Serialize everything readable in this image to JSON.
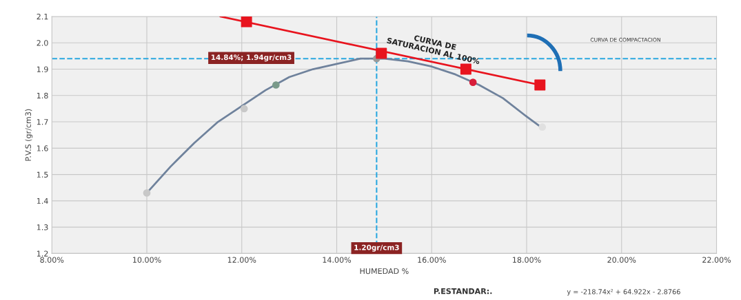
{
  "chart_data": {
    "type": "line",
    "xlabel": "HUMEDAD %",
    "ylabel": "P.V.S (gr/cm3)",
    "xlim": [
      0.08,
      0.22
    ],
    "xticks": [
      {
        "value": 0.08,
        "label": "8.00%"
      },
      {
        "value": 0.1,
        "label": "10.00%"
      },
      {
        "value": 0.12,
        "label": "12.00%"
      },
      {
        "value": 0.14,
        "label": "14.00%"
      },
      {
        "value": 0.16,
        "label": "16.00%"
      },
      {
        "value": 0.18,
        "label": "18.00%"
      },
      {
        "value": 0.2,
        "label": "20.00%"
      },
      {
        "value": 0.22,
        "label": "22.00%"
      }
    ],
    "ylim": [
      1.2,
      2.1
    ],
    "yticks": [
      1.2,
      1.3,
      1.4,
      1.5,
      1.6,
      1.7,
      1.8,
      1.9,
      {
        "value": 2.0,
        "label": "2.0"
      },
      2.1
    ],
    "grid": true,
    "series": [
      {
        "color": "#6f829c",
        "marker": "none",
        "x": [
          0.1,
          0.105,
          0.11,
          0.115,
          0.12,
          0.125,
          0.13,
          0.135,
          0.14,
          0.145,
          0.15,
          0.155,
          0.16,
          0.165,
          0.17,
          0.175,
          0.18,
          0.183
        ],
        "values": [
          1.43,
          1.53,
          1.62,
          1.7,
          1.76,
          1.82,
          1.87,
          1.9,
          1.92,
          1.94,
          1.94,
          1.93,
          1.91,
          1.88,
          1.84,
          1.79,
          1.72,
          1.68
        ]
      },
      {
        "type": "scatter",
        "marker": "circle",
        "x": [
          0.1,
          0.1205,
          0.1272,
          0.1484,
          0.1687,
          0.1833
        ],
        "values": [
          1.43,
          1.75,
          1.84,
          1.94,
          1.85,
          1.68
        ],
        "colors": [
          "#c8c8c8",
          "#c8c8c8",
          "#7a9a8a",
          "#9a9a9a",
          "#d81e3a",
          "#e0e0e0"
        ]
      },
      {
        "type": "line",
        "color": "#e8141e",
        "marker": "none",
        "x": [
          0.1155,
          0.1828
        ],
        "values": [
          2.1,
          1.84
        ]
      },
      {
        "type": "scatter",
        "color": "#e8141e",
        "marker": "square",
        "x": [
          0.121,
          0.1494,
          0.1672,
          0.1828
        ],
        "values": [
          2.08,
          1.96,
          1.9,
          1.84
        ]
      }
    ],
    "ref_lines": [
      {
        "axis": "y",
        "value": 1.94,
        "color": "#2aa8e0",
        "line_style": "dashed"
      },
      {
        "axis": "x",
        "value": 0.1484,
        "color": "#2aa8e0",
        "line_style": "dashed"
      }
    ],
    "annotations": [
      "14.84%; 1.94gr/cm3",
      {
        "text": "1.20gr/cm3",
        "x": 0.1484,
        "y": 1.2
      },
      "CURVA DE\nSATURACION AL 100%",
      "CURVA DE COMPACTACION",
      "P.ESTANDAR:.",
      "y = -218.74x² + 64.922x - 2.8766"
    ]
  }
}
